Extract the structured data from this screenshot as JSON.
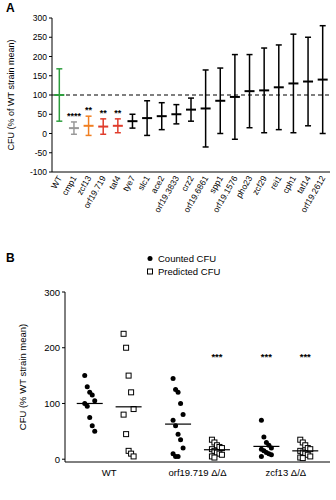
{
  "chart_data": [
    {
      "type": "errorbar",
      "panel_label": "A",
      "y_label": "CFU (% of WT strain mean)",
      "categories": [
        "WT",
        "cmp1",
        "zcf13",
        "orf19.719",
        "taf4",
        "tye7",
        "slc1",
        "ace2",
        "orf19.3833",
        "crz2",
        "orf19.6861",
        "spp1",
        "orf19.1576",
        "pho23",
        "zcf29",
        "rei1",
        "cph1",
        "taf14",
        "orf19.2612"
      ],
      "values": [
        100,
        14,
        20,
        18,
        20,
        32,
        40,
        45,
        50,
        62,
        65,
        85,
        95,
        110,
        112,
        120,
        130,
        135,
        140
      ],
      "errors": [
        68,
        16,
        25,
        20,
        18,
        18,
        45,
        35,
        25,
        30,
        100,
        85,
        110,
        95,
        110,
        110,
        128,
        115,
        140
      ],
      "colors": [
        "#2e9e3e",
        "#999999",
        "#f07f22",
        "#e03c2c",
        "#e03c2c",
        "#000000",
        "#000000",
        "#000000",
        "#000000",
        "#000000",
        "#000000",
        "#000000",
        "#000000",
        "#000000",
        "#000000",
        "#000000",
        "#000000",
        "#000000",
        "#000000"
      ],
      "significance": [
        null,
        "****",
        "**",
        "**",
        "**",
        null,
        null,
        null,
        null,
        null,
        null,
        null,
        null,
        null,
        null,
        null,
        null,
        null,
        null
      ],
      "reference_line": 100,
      "ylim": [
        -100,
        300
      ],
      "yticks": [
        -100,
        -50,
        0,
        50,
        100,
        150,
        200,
        250,
        300
      ]
    },
    {
      "type": "scatter",
      "panel_label": "B",
      "y_label": "CFU (% WT strain mean)",
      "categories": [
        "WT",
        "orf19.719 Δ/Δ",
        "zcf13 Δ/Δ"
      ],
      "legend": "top",
      "ylim": [
        -5,
        300
      ],
      "yticks": [
        0,
        100,
        200,
        300
      ],
      "series": [
        {
          "name": "Counted CFU",
          "marker": "circle",
          "color": "#000000",
          "values": [
            [
              150,
              130,
              120,
              115,
              105,
              100,
              95,
              75,
              60,
              50
            ],
            [
              145,
              125,
              120,
              100,
              80,
              70,
              60,
              45,
              35,
              20,
              10,
              5,
              5
            ],
            [
              70,
              40,
              30,
              25,
              20,
              18,
              15,
              12,
              10,
              8,
              5
            ]
          ],
          "means": [
            100,
            63,
            23
          ],
          "significance": [
            null,
            null,
            "***"
          ]
        },
        {
          "name": "Predicted CFU",
          "marker": "square",
          "color": "#000000",
          "values": [
            [
              225,
              200,
              150,
              120,
              90,
              80,
              45,
              15,
              10,
              5
            ],
            [
              35,
              30,
              25,
              22,
              20,
              18,
              15,
              12,
              10,
              8,
              5,
              3
            ],
            [
              35,
              30,
              25,
              20,
              18,
              15,
              12,
              10,
              8,
              5,
              3,
              2
            ]
          ],
          "means": [
            94,
            17,
            15
          ],
          "significance": [
            null,
            "***",
            "***"
          ]
        }
      ]
    }
  ]
}
